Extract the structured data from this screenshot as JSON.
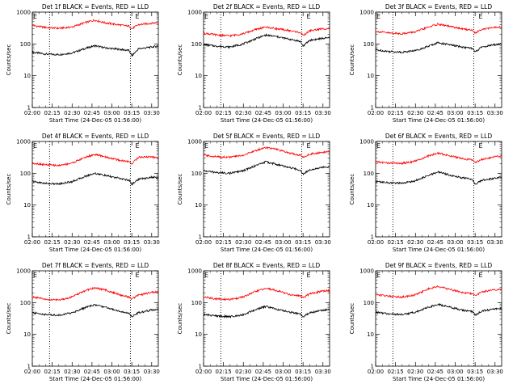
{
  "figure": {
    "colors": {
      "events": "#000000",
      "lld": "#ff0000",
      "axis": "#000000",
      "background": "#ffffff"
    }
  },
  "chart_data": [
    {
      "type": "line",
      "title": "Det 1f BLACK = Events, RED = LLD",
      "xlabel": "Start Time (24-Dec-05 01:56:00)",
      "ylabel": "Counts/sec",
      "xlim": [
        "02:00",
        "03:35"
      ],
      "ylim": [
        1,
        1000
      ],
      "yscale": "log",
      "xticks": [
        "02:00",
        "02:15",
        "02:30",
        "02:45",
        "03:00",
        "03:15",
        "03:30"
      ],
      "yticks": [
        "1",
        "10",
        "100",
        "1000"
      ],
      "vlines": [
        "02:13",
        "03:14"
      ],
      "marker_label": "E",
      "marker_x": [
        "02:00",
        "03:17"
      ],
      "grid": false,
      "series": [
        {
          "name": "Events",
          "color": "#000000",
          "x": [
            "02:00",
            "02:10",
            "02:20",
            "02:30",
            "02:40",
            "02:47",
            "02:55",
            "03:05",
            "03:13",
            "03:15",
            "03:20",
            "03:30",
            "03:35"
          ],
          "y": [
            55,
            48,
            46,
            52,
            72,
            88,
            75,
            68,
            62,
            42,
            70,
            80,
            85
          ]
        },
        {
          "name": "LLD",
          "color": "#ff0000",
          "x": [
            "02:00",
            "02:10",
            "02:20",
            "02:30",
            "02:40",
            "02:47",
            "02:55",
            "03:05",
            "03:13",
            "03:15",
            "03:20",
            "03:30",
            "03:35"
          ],
          "y": [
            380,
            330,
            310,
            340,
            470,
            560,
            460,
            400,
            360,
            300,
            400,
            450,
            470
          ]
        }
      ]
    },
    {
      "type": "line",
      "title": "Det 2f BLACK = Events, RED = LLD",
      "xlabel": "Start Time (24-Dec-05 01:56:00)",
      "ylabel": "Counts/sec",
      "xlim": [
        "02:00",
        "03:35"
      ],
      "ylim": [
        1,
        1000
      ],
      "yscale": "log",
      "xticks": [
        "02:00",
        "02:15",
        "02:30",
        "02:45",
        "03:00",
        "03:15",
        "03:30"
      ],
      "yticks": [
        "1",
        "10",
        "100",
        "1000"
      ],
      "vlines": [
        "02:13",
        "03:14"
      ],
      "marker_label": "E",
      "marker_x": [
        "02:00",
        "03:17"
      ],
      "grid": false,
      "series": [
        {
          "name": "Events",
          "color": "#000000",
          "x": [
            "02:00",
            "02:10",
            "02:20",
            "02:30",
            "02:40",
            "02:47",
            "02:55",
            "03:05",
            "03:13",
            "03:15",
            "03:20",
            "03:30",
            "03:35"
          ],
          "y": [
            95,
            85,
            80,
            100,
            150,
            190,
            170,
            140,
            120,
            85,
            130,
            150,
            155
          ]
        },
        {
          "name": "LLD",
          "color": "#ff0000",
          "x": [
            "02:00",
            "02:10",
            "02:20",
            "02:30",
            "02:40",
            "02:47",
            "02:55",
            "03:05",
            "03:13",
            "03:15",
            "03:20",
            "03:30",
            "03:35"
          ],
          "y": [
            220,
            190,
            180,
            210,
            290,
            340,
            300,
            260,
            230,
            180,
            260,
            300,
            310
          ]
        }
      ]
    },
    {
      "type": "line",
      "title": "Det 3f BLACK = Events, RED = LLD",
      "xlabel": "Start Time (24-Dec-05 01:56:00)",
      "ylabel": "Counts/sec",
      "xlim": [
        "02:00",
        "03:35"
      ],
      "ylim": [
        1,
        1000
      ],
      "yscale": "log",
      "xticks": [
        "02:00",
        "02:15",
        "02:30",
        "02:45",
        "03:00",
        "03:15",
        "03:30"
      ],
      "yticks": [
        "1",
        "10",
        "100",
        "1000"
      ],
      "vlines": [
        "02:13",
        "03:14"
      ],
      "marker_label": "E",
      "marker_x": [
        "02:00",
        "03:17"
      ],
      "grid": false,
      "series": [
        {
          "name": "Events",
          "color": "#000000",
          "x": [
            "02:00",
            "02:10",
            "02:20",
            "02:30",
            "02:40",
            "02:47",
            "02:55",
            "03:05",
            "03:13",
            "03:15",
            "03:20",
            "03:30",
            "03:35"
          ],
          "y": [
            65,
            58,
            55,
            62,
            85,
            110,
            95,
            80,
            72,
            55,
            80,
            95,
            100
          ]
        },
        {
          "name": "LLD",
          "color": "#ff0000",
          "x": [
            "02:00",
            "02:10",
            "02:20",
            "02:30",
            "02:40",
            "02:47",
            "02:55",
            "03:05",
            "03:13",
            "03:15",
            "03:20",
            "03:30",
            "03:35"
          ],
          "y": [
            250,
            220,
            210,
            240,
            340,
            420,
            360,
            300,
            270,
            220,
            290,
            330,
            340
          ]
        }
      ]
    },
    {
      "type": "line",
      "title": "Det 4f BLACK = Events, RED = LLD",
      "xlabel": "Start Time (24-Dec-05 01:56:00)",
      "ylabel": "Counts/sec",
      "xlim": [
        "02:00",
        "03:35"
      ],
      "ylim": [
        1,
        1000
      ],
      "yscale": "log",
      "xticks": [
        "02:00",
        "02:15",
        "02:30",
        "02:45",
        "03:00",
        "03:15",
        "03:30"
      ],
      "yticks": [
        "1",
        "10",
        "100",
        "1000"
      ],
      "vlines": [
        "02:13",
        "03:14"
      ],
      "marker_label": "E",
      "marker_x": [
        "02:00",
        "03:17"
      ],
      "grid": false,
      "series": [
        {
          "name": "Events",
          "color": "#000000",
          "x": [
            "02:00",
            "02:10",
            "02:20",
            "02:30",
            "02:40",
            "02:47",
            "02:55",
            "03:05",
            "03:13",
            "03:15",
            "03:20",
            "03:30",
            "03:35"
          ],
          "y": [
            55,
            48,
            46,
            55,
            80,
            100,
            85,
            70,
            60,
            45,
            65,
            75,
            72
          ]
        },
        {
          "name": "LLD",
          "color": "#ff0000",
          "x": [
            "02:00",
            "02:10",
            "02:20",
            "02:30",
            "02:40",
            "02:47",
            "02:55",
            "03:05",
            "03:13",
            "03:15",
            "03:20",
            "03:30",
            "03:35"
          ],
          "y": [
            210,
            185,
            175,
            210,
            320,
            390,
            330,
            260,
            230,
            200,
            320,
            330,
            300
          ]
        }
      ]
    },
    {
      "type": "line",
      "title": "Det 5f BLACK = Events, RED = LLD",
      "xlabel": "Start Time (24-Dec-05 01:56:00)",
      "ylabel": "Counts/sec",
      "xlim": [
        "02:00",
        "03:35"
      ],
      "ylim": [
        1,
        1000
      ],
      "yscale": "log",
      "xticks": [
        "02:00",
        "02:15",
        "02:30",
        "02:45",
        "03:00",
        "03:15",
        "03:30"
      ],
      "yticks": [
        "1",
        "10",
        "100",
        "1000"
      ],
      "vlines": [
        "02:13",
        "03:14"
      ],
      "marker_label": "E",
      "marker_x": [
        "02:00",
        "03:17"
      ],
      "grid": false,
      "series": [
        {
          "name": "Events",
          "color": "#000000",
          "x": [
            "02:00",
            "02:10",
            "02:20",
            "02:30",
            "02:40",
            "02:47",
            "02:55",
            "03:05",
            "03:13",
            "03:15",
            "03:20",
            "03:30",
            "03:35"
          ],
          "y": [
            120,
            105,
            100,
            120,
            180,
            230,
            190,
            150,
            125,
            95,
            130,
            155,
            160
          ]
        },
        {
          "name": "LLD",
          "color": "#ff0000",
          "x": [
            "02:00",
            "02:10",
            "02:20",
            "02:30",
            "02:40",
            "02:47",
            "02:55",
            "03:05",
            "03:13",
            "03:15",
            "03:20",
            "03:30",
            "03:35"
          ],
          "y": [
            370,
            330,
            320,
            370,
            530,
            650,
            560,
            430,
            370,
            320,
            400,
            460,
            470
          ]
        }
      ]
    },
    {
      "type": "line",
      "title": "Det 6f BLACK = Events, RED = LLD",
      "xlabel": "Start Time (24-Dec-05 01:56:00)",
      "ylabel": "Counts/sec",
      "xlim": [
        "02:00",
        "03:35"
      ],
      "ylim": [
        1,
        1000
      ],
      "yscale": "log",
      "xticks": [
        "02:00",
        "02:15",
        "02:30",
        "02:45",
        "03:00",
        "03:15",
        "03:30"
      ],
      "yticks": [
        "1",
        "10",
        "100",
        "1000"
      ],
      "vlines": [
        "02:13",
        "03:14"
      ],
      "marker_label": "E",
      "marker_x": [
        "02:00",
        "03:17"
      ],
      "grid": false,
      "series": [
        {
          "name": "Events",
          "color": "#000000",
          "x": [
            "02:00",
            "02:10",
            "02:20",
            "02:30",
            "02:40",
            "02:47",
            "02:55",
            "03:05",
            "03:13",
            "03:15",
            "03:20",
            "03:30",
            "03:35"
          ],
          "y": [
            55,
            50,
            48,
            58,
            85,
            110,
            90,
            72,
            65,
            45,
            60,
            70,
            75
          ]
        },
        {
          "name": "LLD",
          "color": "#ff0000",
          "x": [
            "02:00",
            "02:10",
            "02:20",
            "02:30",
            "02:40",
            "02:47",
            "02:55",
            "03:05",
            "03:13",
            "03:15",
            "03:20",
            "03:30",
            "03:35"
          ],
          "y": [
            230,
            210,
            205,
            240,
            350,
            430,
            360,
            290,
            260,
            220,
            270,
            330,
            350
          ]
        }
      ]
    },
    {
      "type": "line",
      "title": "Det 7f BLACK = Events, RED = LLD",
      "xlabel": "Start Time (24-Dec-05 01:56:00)",
      "ylabel": "Counts/sec",
      "xlim": [
        "02:00",
        "03:35"
      ],
      "ylim": [
        1,
        1000
      ],
      "yscale": "log",
      "xticks": [
        "02:00",
        "02:15",
        "02:30",
        "02:45",
        "03:00",
        "03:15",
        "03:30"
      ],
      "yticks": [
        "1",
        "10",
        "100",
        "1000"
      ],
      "vlines": [
        "02:13",
        "03:14"
      ],
      "marker_label": "E",
      "marker_x": [
        "02:00",
        "03:17"
      ],
      "grid": false,
      "series": [
        {
          "name": "Events",
          "color": "#000000",
          "x": [
            "02:00",
            "02:10",
            "02:20",
            "02:30",
            "02:40",
            "02:47",
            "02:55",
            "03:05",
            "03:13",
            "03:15",
            "03:20",
            "03:30",
            "03:35"
          ],
          "y": [
            48,
            42,
            40,
            48,
            70,
            85,
            72,
            55,
            45,
            36,
            48,
            58,
            62
          ]
        },
        {
          "name": "LLD",
          "color": "#ff0000",
          "x": [
            "02:00",
            "02:10",
            "02:20",
            "02:30",
            "02:40",
            "02:47",
            "02:55",
            "03:05",
            "03:13",
            "03:15",
            "03:20",
            "03:30",
            "03:35"
          ],
          "y": [
            150,
            125,
            120,
            150,
            240,
            290,
            250,
            180,
            150,
            130,
            170,
            210,
            220
          ]
        }
      ]
    },
    {
      "type": "line",
      "title": "Det 8f BLACK = Events, RED = LLD",
      "xlabel": "Start Time (24-Dec-05 01:56:00)",
      "ylabel": "Counts/sec",
      "xlim": [
        "02:00",
        "03:35"
      ],
      "ylim": [
        1,
        1000
      ],
      "yscale": "log",
      "xticks": [
        "02:00",
        "02:15",
        "02:30",
        "02:45",
        "03:00",
        "03:15",
        "03:30"
      ],
      "yticks": [
        "1",
        "10",
        "100",
        "1000"
      ],
      "vlines": [
        "02:13",
        "03:14"
      ],
      "marker_label": "E",
      "marker_x": [
        "02:00",
        "03:17"
      ],
      "grid": false,
      "series": [
        {
          "name": "Events",
          "color": "#000000",
          "x": [
            "02:00",
            "02:10",
            "02:20",
            "02:30",
            "02:40",
            "02:47",
            "02:55",
            "03:05",
            "03:13",
            "03:15",
            "03:20",
            "03:30",
            "03:35"
          ],
          "y": [
            42,
            38,
            36,
            42,
            62,
            75,
            62,
            50,
            44,
            36,
            48,
            58,
            60
          ]
        },
        {
          "name": "LLD",
          "color": "#ff0000",
          "x": [
            "02:00",
            "02:10",
            "02:20",
            "02:30",
            "02:40",
            "02:47",
            "02:55",
            "03:05",
            "03:13",
            "03:15",
            "03:20",
            "03:30",
            "03:35"
          ],
          "y": [
            150,
            130,
            125,
            150,
            230,
            280,
            240,
            180,
            160,
            140,
            190,
            230,
            240
          ]
        }
      ]
    },
    {
      "type": "line",
      "title": "Det 9f BLACK = Events, RED = LLD",
      "xlabel": "Start Time (24-Dec-05 01:56:00)",
      "ylabel": "Counts/sec",
      "xlim": [
        "02:00",
        "03:35"
      ],
      "ylim": [
        1,
        1000
      ],
      "yscale": "log",
      "xticks": [
        "02:00",
        "02:15",
        "02:30",
        "02:45",
        "03:00",
        "03:15",
        "03:30"
      ],
      "yticks": [
        "1",
        "10",
        "100",
        "1000"
      ],
      "vlines": [
        "02:13",
        "03:14"
      ],
      "marker_label": "E",
      "marker_x": [
        "02:00",
        "03:17"
      ],
      "grid": false,
      "series": [
        {
          "name": "Events",
          "color": "#000000",
          "x": [
            "02:00",
            "02:10",
            "02:20",
            "02:30",
            "02:40",
            "02:47",
            "02:55",
            "03:05",
            "03:13",
            "03:15",
            "03:20",
            "03:30",
            "03:35"
          ],
          "y": [
            50,
            44,
            42,
            50,
            72,
            88,
            74,
            58,
            52,
            40,
            55,
            62,
            65
          ]
        },
        {
          "name": "LLD",
          "color": "#ff0000",
          "x": [
            "02:00",
            "02:10",
            "02:20",
            "02:30",
            "02:40",
            "02:47",
            "02:55",
            "03:05",
            "03:13",
            "03:15",
            "03:20",
            "03:30",
            "03:35"
          ],
          "y": [
            180,
            160,
            150,
            175,
            270,
            320,
            270,
            210,
            190,
            160,
            220,
            250,
            260
          ]
        }
      ]
    }
  ]
}
